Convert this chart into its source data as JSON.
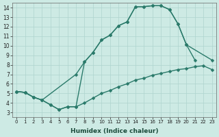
{
  "xlabel": "Humidex (Indice chaleur)",
  "bg_color": "#cdeae4",
  "grid_color": "#aed4ce",
  "line_color": "#2a7a6a",
  "xlim": [
    -0.5,
    23.5
  ],
  "ylim": [
    2.5,
    14.5
  ],
  "xticks": [
    0,
    1,
    2,
    3,
    4,
    5,
    6,
    7,
    8,
    9,
    10,
    11,
    12,
    13,
    14,
    15,
    16,
    17,
    18,
    19,
    20,
    21,
    22,
    23
  ],
  "yticks": [
    3,
    4,
    5,
    6,
    7,
    8,
    9,
    10,
    11,
    12,
    13,
    14
  ],
  "line1_x": [
    0,
    1,
    2,
    3,
    4,
    5,
    6,
    7,
    8,
    9,
    10,
    11,
    12,
    13,
    14,
    15,
    16,
    17,
    18,
    19,
    20,
    21
  ],
  "line1_y": [
    5.2,
    5.1,
    4.6,
    4.3,
    3.8,
    3.3,
    3.6,
    3.6,
    8.3,
    9.3,
    10.6,
    11.1,
    12.1,
    12.5,
    14.1,
    14.1,
    14.2,
    14.2,
    13.8,
    12.3,
    10.1,
    8.5
  ],
  "line2_x": [
    0,
    1,
    2,
    3,
    7,
    8,
    9,
    10,
    11,
    12,
    13,
    14,
    15,
    16,
    17,
    18,
    19,
    20,
    23
  ],
  "line2_y": [
    5.2,
    5.1,
    4.6,
    4.3,
    7.0,
    8.3,
    9.3,
    10.6,
    11.1,
    12.1,
    12.5,
    14.1,
    14.1,
    14.2,
    14.2,
    13.8,
    12.3,
    10.1,
    8.5
  ],
  "line3_x": [
    0,
    1,
    2,
    3,
    4,
    5,
    6,
    7,
    8,
    9,
    10,
    11,
    12,
    13,
    14,
    15,
    16,
    17,
    18,
    19,
    20,
    21,
    22,
    23
  ],
  "line3_y": [
    5.2,
    5.1,
    4.6,
    4.3,
    3.8,
    3.3,
    3.6,
    3.6,
    4.0,
    4.5,
    5.0,
    5.3,
    5.7,
    6.0,
    6.4,
    6.6,
    6.9,
    7.1,
    7.3,
    7.5,
    7.6,
    7.8,
    7.9,
    7.5
  ]
}
